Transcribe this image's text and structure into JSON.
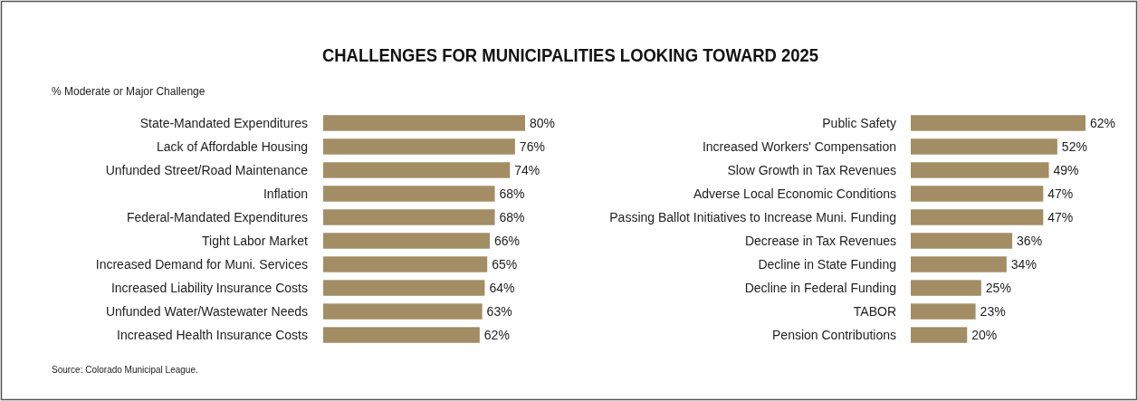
{
  "chart_data": [
    {
      "type": "bar",
      "orientation": "horizontal",
      "title": "CHALLENGES FOR MUNICIPALITIES LOOKING TOWARD 2025",
      "subtitle": "% Moderate or Major Challenge",
      "annotations": [
        "Source: Colorado Municipal League."
      ],
      "categories": [
        "State-Mandated Expenditures",
        "Lack of Affordable Housing",
        "Unfunded Street/Road Maintenance",
        "Inflation",
        "Federal-Mandated Expenditures",
        "Tight Labor Market",
        "Increased Demand for Muni. Services",
        "Increased Liability Insurance Costs",
        "Unfunded Water/Wastewater Needs",
        "Increased Health Insurance Costs"
      ],
      "values": [
        80,
        76,
        74,
        68,
        68,
        66,
        65,
        64,
        63,
        62
      ],
      "value_labels": [
        "80%",
        "76%",
        "74%",
        "68%",
        "68%",
        "66%",
        "65%",
        "64%",
        "63%",
        "62%"
      ],
      "color": "#a38d64"
    },
    {
      "type": "bar",
      "orientation": "horizontal",
      "categories": [
        "Public Safety",
        "Increased Workers' Compensation",
        "Slow Growth in Tax Revenues",
        "Adverse Local Economic Conditions",
        "Passing Ballot Initiatives to Increase Muni. Funding",
        "Decrease in Tax Revenues",
        "Decline in State Funding",
        "Decline in Federal Funding",
        "TABOR",
        "Pension Contributions"
      ],
      "values": [
        62,
        52,
        49,
        47,
        47,
        36,
        34,
        25,
        23,
        20
      ],
      "value_labels": [
        "62%",
        "52%",
        "49%",
        "47%",
        "47%",
        "36%",
        "34%",
        "25%",
        "23%",
        "20%"
      ],
      "color": "#a38d64"
    }
  ]
}
